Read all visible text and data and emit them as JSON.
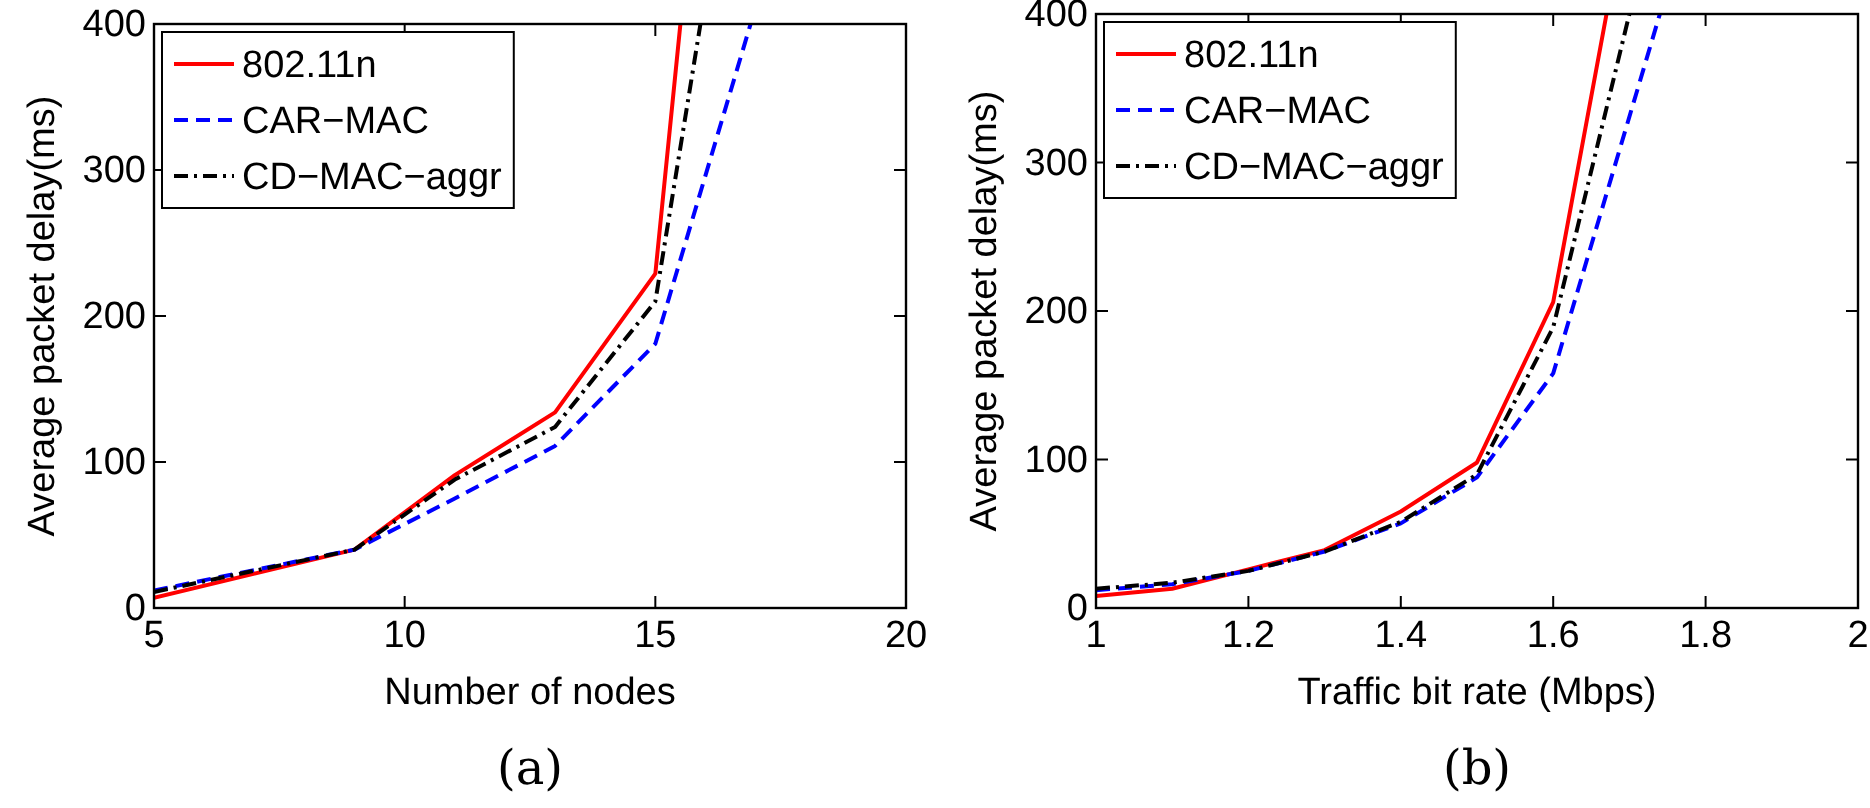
{
  "chart_data": [
    {
      "type": "line",
      "xlabel": "Number of nodes",
      "ylabel": "Average packet delay(ms)",
      "xlim": [
        5,
        20
      ],
      "xticks": [
        5,
        10,
        15,
        20
      ],
      "ylim": [
        0,
        400
      ],
      "yticks": [
        0,
        100,
        200,
        300,
        400
      ],
      "legend": "top left",
      "grid": false,
      "annotations": [
        "(a)"
      ],
      "series": [
        {
          "name": "802.11n",
          "color": "#ff0000",
          "line_style": "solid",
          "x": [
            5,
            9,
            11,
            13,
            15,
            15.5
          ],
          "values": [
            7,
            40,
            91,
            134,
            229,
            400
          ]
        },
        {
          "name": "CAR−MAC",
          "color": "#0000ff",
          "line_style": "dashed",
          "x": [
            5,
            9,
            11,
            13,
            15,
            16.9
          ],
          "values": [
            12,
            40,
            75,
            111,
            181,
            400
          ]
        },
        {
          "name": "CD−MAC−aggr",
          "color": "#000000",
          "line_style": "dashdot",
          "x": [
            5,
            9,
            11,
            13,
            15,
            15.9
          ],
          "values": [
            11,
            40,
            88,
            124,
            210,
            400
          ]
        }
      ]
    },
    {
      "type": "line",
      "xlabel": "Traffic bit rate (Mbps)",
      "ylabel": "Average packet delay(ms)",
      "xlim": [
        1,
        2
      ],
      "xticks": [
        1,
        1.2,
        1.4,
        1.6,
        1.8,
        2
      ],
      "ylim": [
        0,
        400
      ],
      "yticks": [
        0,
        100,
        200,
        300,
        400
      ],
      "legend": "top left",
      "grid": false,
      "annotations": [
        "(b)"
      ],
      "series": [
        {
          "name": "802.11n",
          "color": "#ff0000",
          "line_style": "solid",
          "x": [
            1,
            1.1,
            1.2,
            1.3,
            1.4,
            1.5,
            1.6,
            1.67
          ],
          "values": [
            8,
            13,
            26,
            39,
            65,
            98,
            206,
            400
          ]
        },
        {
          "name": "CAR−MAC",
          "color": "#0000ff",
          "line_style": "dashed",
          "x": [
            1,
            1.1,
            1.2,
            1.3,
            1.4,
            1.5,
            1.6,
            1.74
          ],
          "values": [
            12,
            16,
            25,
            38,
            57,
            88,
            158,
            400
          ]
        },
        {
          "name": "CD−MAC−aggr",
          "color": "#000000",
          "line_style": "dashdot",
          "x": [
            1,
            1.1,
            1.2,
            1.3,
            1.4,
            1.5,
            1.6,
            1.7
          ],
          "values": [
            13,
            17,
            25,
            38,
            58,
            90,
            189,
            400
          ]
        }
      ]
    }
  ]
}
